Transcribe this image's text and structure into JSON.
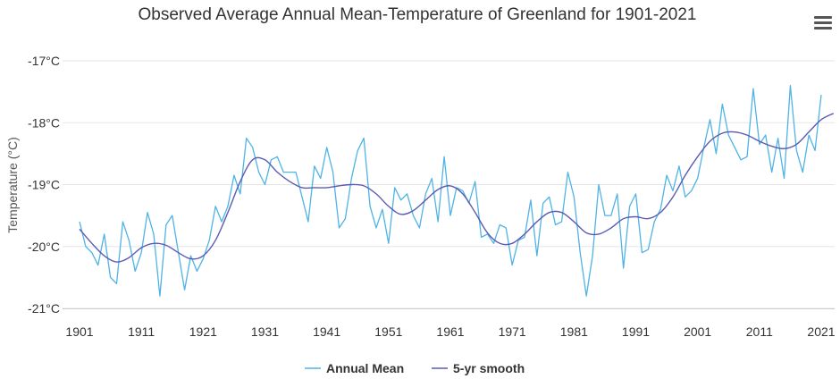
{
  "chart_data": {
    "type": "line",
    "title": "Observed Average Annual Mean-Temperature of Greenland for 1901-2021",
    "xlabel": "",
    "ylabel": "Temperature (°C)",
    "xlim": [
      1901,
      2022
    ],
    "ylim": [
      -21,
      -16.7
    ],
    "y_ticks": [
      -17,
      -18,
      -19,
      -20,
      -21
    ],
    "y_tick_labels": [
      "-17°C",
      "-18°C",
      "-19°C",
      "-20°C",
      "-21°C"
    ],
    "x_ticks": [
      1901,
      1911,
      1921,
      1931,
      1941,
      1951,
      1961,
      1971,
      1981,
      1991,
      2001,
      2011,
      2021
    ],
    "x_tick_labels": [
      "1901",
      "1911",
      "1921",
      "1931",
      "1941",
      "1951",
      "1961",
      "1971",
      "1981",
      "1991",
      "2001",
      "2011",
      "2021"
    ],
    "grid": "horizontal",
    "legend": {
      "position": "bottom-center",
      "items": [
        "Annual Mean",
        "5-yr smooth"
      ]
    },
    "series": [
      {
        "name": "Annual Mean",
        "color": "#4fb3e6",
        "x_start": 1901,
        "values": [
          -19.6,
          -20.0,
          -20.1,
          -20.3,
          -19.8,
          -20.5,
          -20.6,
          -19.6,
          -19.9,
          -20.4,
          -20.1,
          -19.45,
          -19.8,
          -20.8,
          -19.65,
          -19.5,
          -20.1,
          -20.7,
          -20.15,
          -20.4,
          -20.2,
          -19.9,
          -19.35,
          -19.6,
          -19.35,
          -18.85,
          -19.15,
          -18.25,
          -18.4,
          -18.8,
          -19.0,
          -18.6,
          -18.55,
          -18.8,
          -18.8,
          -18.8,
          -19.2,
          -19.6,
          -18.7,
          -18.9,
          -18.4,
          -18.8,
          -19.7,
          -19.55,
          -18.9,
          -18.45,
          -18.25,
          -19.35,
          -19.7,
          -19.4,
          -19.95,
          -19.05,
          -19.25,
          -19.15,
          -19.5,
          -19.7,
          -19.15,
          -18.9,
          -19.6,
          -18.55,
          -19.5,
          -19.05,
          -19.1,
          -19.3,
          -18.95,
          -19.85,
          -19.8,
          -19.95,
          -19.65,
          -19.7,
          -20.3,
          -19.9,
          -19.85,
          -19.25,
          -20.15,
          -19.3,
          -19.2,
          -19.65,
          -19.6,
          -18.8,
          -19.2,
          -20.1,
          -20.8,
          -20.15,
          -19.0,
          -19.5,
          -19.5,
          -19.15,
          -20.35,
          -19.35,
          -19.15,
          -20.1,
          -20.05,
          -19.6,
          -19.4,
          -18.85,
          -19.1,
          -18.7,
          -19.2,
          -19.1,
          -18.9,
          -18.4,
          -17.95,
          -18.5,
          -17.7,
          -18.2,
          -18.4,
          -18.6,
          -18.55,
          -17.45,
          -18.35,
          -18.2,
          -18.8,
          -18.25,
          -18.9,
          -17.4,
          -18.45,
          -18.8,
          -18.2,
          -18.45,
          -17.55
        ]
      },
      {
        "name": "5-yr smooth",
        "color": "#5b5bb5",
        "x": [
          1901,
          1903,
          1905,
          1907,
          1909,
          1911,
          1913,
          1915,
          1917,
          1919,
          1921,
          1923,
          1925,
          1927,
          1929,
          1931,
          1933,
          1935,
          1937,
          1939,
          1941,
          1943,
          1945,
          1947,
          1949,
          1951,
          1953,
          1955,
          1957,
          1959,
          1961,
          1963,
          1965,
          1967,
          1969,
          1971,
          1973,
          1975,
          1977,
          1979,
          1981,
          1983,
          1985,
          1987,
          1989,
          1991,
          1993,
          1995,
          1997,
          1999,
          2001,
          2003,
          2005,
          2007,
          2009,
          2011,
          2013,
          2015,
          2017,
          2019,
          2021,
          2023
        ],
        "values": [
          -19.72,
          -19.95,
          -20.15,
          -20.25,
          -20.18,
          -20.02,
          -19.95,
          -19.98,
          -20.1,
          -20.2,
          -20.15,
          -19.9,
          -19.45,
          -18.95,
          -18.6,
          -18.6,
          -18.8,
          -18.95,
          -19.05,
          -19.05,
          -19.05,
          -19.02,
          -19.0,
          -19.02,
          -19.15,
          -19.35,
          -19.48,
          -19.42,
          -19.25,
          -19.08,
          -19.02,
          -19.15,
          -19.45,
          -19.78,
          -19.95,
          -19.95,
          -19.8,
          -19.6,
          -19.45,
          -19.45,
          -19.6,
          -19.78,
          -19.8,
          -19.7,
          -19.55,
          -19.52,
          -19.55,
          -19.45,
          -19.2,
          -18.85,
          -18.55,
          -18.3,
          -18.17,
          -18.15,
          -18.2,
          -18.3,
          -18.38,
          -18.42,
          -18.35,
          -18.15,
          -17.95,
          -17.85
        ]
      }
    ]
  }
}
